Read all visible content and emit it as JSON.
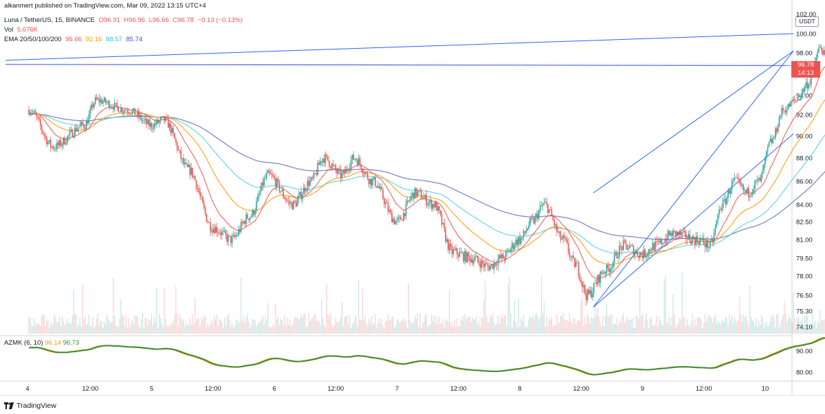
{
  "header": {
    "publisher": "alkanmert published on TradingView.com, Mar 09, 2022 13:15 UTC+4"
  },
  "legend": {
    "symbol": "Luna / TetherUS, 15, BINANCE",
    "ohlc": {
      "o": "O96.91",
      "h": "H96.96",
      "l": "L96.66",
      "c": "C96.78",
      "chg": "−0.13 (−0.13%)"
    },
    "vol_label": "Vol",
    "vol_value": "5.676K",
    "ema_label": "EMA 20/50/100/200",
    "ema_values": [
      "95.66",
      "92.16",
      "88.57",
      "85.74"
    ]
  },
  "oscillator": {
    "label": "AZMK (6, 10)",
    "values": [
      "96.14",
      "96.73"
    ]
  },
  "price_badge": {
    "price": "96.78",
    "countdown": "14:13"
  },
  "currency": "USDT",
  "branding": "TradingView",
  "colors": {
    "up": "#26a69a",
    "down": "#ef5350",
    "ema20": "#ef5350",
    "ema50": "#ff9800",
    "ema100": "#4dd0e1",
    "ema200": "#5c6bc0",
    "trendline": "#2962ff",
    "osc_fast": "#ff9800",
    "osc_slow": "#388e3c"
  },
  "chart_data": [
    {
      "type": "candlestick",
      "title": "Luna / TetherUS, 15, BINANCE",
      "y_ticks": [
        "102.00",
        "100.00",
        "98.00",
        "96.00",
        "94.00",
        "92.00",
        "90.00",
        "88.00",
        "86.00",
        "84.00",
        "82.50",
        "81.00",
        "79.50",
        "78.00",
        "76.50",
        "75.30",
        "74.10"
      ],
      "x_ticks": [
        "4",
        "12:00",
        "5",
        "12:00",
        "6",
        "12:00",
        "7",
        "12:00",
        "8",
        "12:00",
        "9",
        "12:00",
        "10"
      ],
      "close_path": [
        {
          "t": 0.0,
          "p": 92.5
        },
        {
          "t": 0.2,
          "p": 89.0
        },
        {
          "t": 0.45,
          "p": 91.0
        },
        {
          "t": 0.55,
          "p": 93.5
        },
        {
          "t": 0.8,
          "p": 92.5
        },
        {
          "t": 1.0,
          "p": 91.0
        },
        {
          "t": 1.1,
          "p": 91.5
        },
        {
          "t": 1.3,
          "p": 87.0
        },
        {
          "t": 1.5,
          "p": 82.0
        },
        {
          "t": 1.65,
          "p": 81.0
        },
        {
          "t": 1.8,
          "p": 83.0
        },
        {
          "t": 1.95,
          "p": 86.5
        },
        {
          "t": 2.15,
          "p": 84.0
        },
        {
          "t": 2.3,
          "p": 86.0
        },
        {
          "t": 2.4,
          "p": 88.0
        },
        {
          "t": 2.55,
          "p": 86.5
        },
        {
          "t": 2.65,
          "p": 88.0
        },
        {
          "t": 2.8,
          "p": 86.0
        },
        {
          "t": 3.0,
          "p": 82.5
        },
        {
          "t": 3.15,
          "p": 85.0
        },
        {
          "t": 3.3,
          "p": 84.0
        },
        {
          "t": 3.45,
          "p": 80.0
        },
        {
          "t": 3.6,
          "p": 79.5
        },
        {
          "t": 3.75,
          "p": 78.8
        },
        {
          "t": 3.85,
          "p": 79.5
        },
        {
          "t": 4.0,
          "p": 81.0
        },
        {
          "t": 4.1,
          "p": 82.5
        },
        {
          "t": 4.2,
          "p": 84.0
        },
        {
          "t": 4.35,
          "p": 81.0
        },
        {
          "t": 4.45,
          "p": 79.0
        },
        {
          "t": 4.55,
          "p": 76.5
        },
        {
          "t": 4.7,
          "p": 78.5
        },
        {
          "t": 4.85,
          "p": 80.5
        },
        {
          "t": 5.0,
          "p": 79.8
        },
        {
          "t": 5.1,
          "p": 80.5
        },
        {
          "t": 5.25,
          "p": 81.5
        },
        {
          "t": 5.45,
          "p": 81.0
        },
        {
          "t": 5.55,
          "p": 80.5
        },
        {
          "t": 5.65,
          "p": 84.0
        },
        {
          "t": 5.75,
          "p": 86.0
        },
        {
          "t": 5.85,
          "p": 85.0
        },
        {
          "t": 5.95,
          "p": 86.0
        },
        {
          "t": 6.05,
          "p": 89.5
        },
        {
          "t": 6.15,
          "p": 92.5
        },
        {
          "t": 6.25,
          "p": 93.5
        },
        {
          "t": 6.35,
          "p": 95.0
        },
        {
          "t": 6.45,
          "p": 98.5
        },
        {
          "t": 6.52,
          "p": 96.78
        }
      ],
      "ema": [
        {
          "name": "20",
          "value": 95.66
        },
        {
          "name": "50",
          "value": 92.16
        },
        {
          "name": "100",
          "value": 88.57
        },
        {
          "name": "200",
          "value": 85.74
        }
      ],
      "last_price": 96.78
    },
    {
      "type": "line",
      "title": "AZMK (6, 10)",
      "y_ticks": [
        "90.00",
        "80.00"
      ],
      "series_last_values": [
        96.14,
        96.73
      ]
    }
  ]
}
